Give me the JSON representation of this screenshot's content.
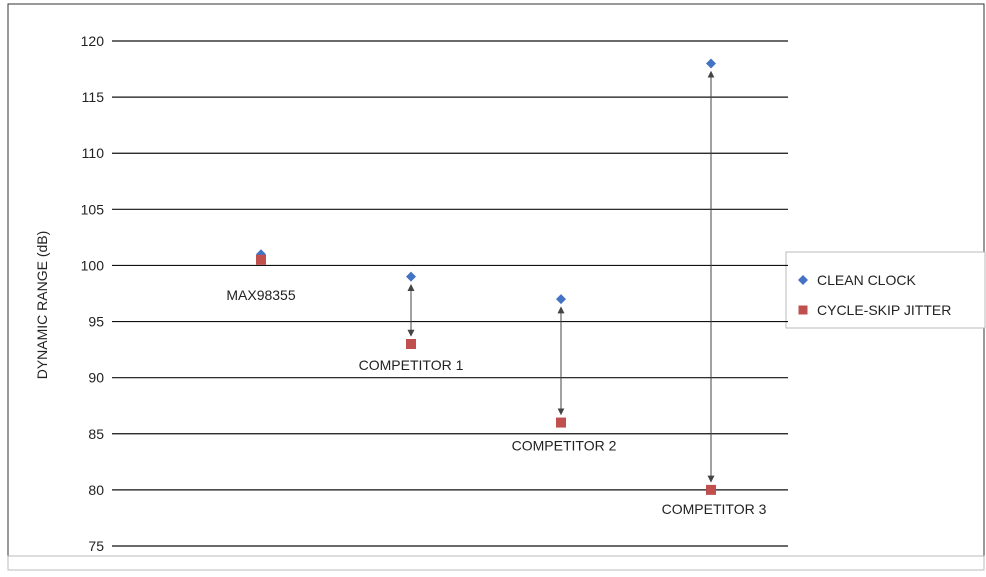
{
  "chart_data": {
    "type": "scatter",
    "title": "",
    "xlabel": "",
    "ylabel": "DYNAMIC RANGE (dB)",
    "ylim": [
      75,
      120
    ],
    "yticks": [
      75,
      80,
      85,
      90,
      95,
      100,
      105,
      110,
      115,
      120
    ],
    "grid": true,
    "legend_position": "right",
    "categories": [
      "MAX98355",
      "COMPETITOR 1",
      "COMPETITOR 2",
      "COMPETITOR 3"
    ],
    "series": [
      {
        "name": "CLEAN CLOCK",
        "marker": "diamond",
        "color": "#4472c4",
        "values": [
          101,
          99,
          97,
          118
        ]
      },
      {
        "name": "CYCLE-SKIP JITTER",
        "marker": "square",
        "color": "#c0504d",
        "values": [
          100.5,
          93,
          86,
          80
        ]
      }
    ],
    "annotations": "double-headed arrows connect each competitor's clean-clock and cycle-skip-jitter points"
  }
}
